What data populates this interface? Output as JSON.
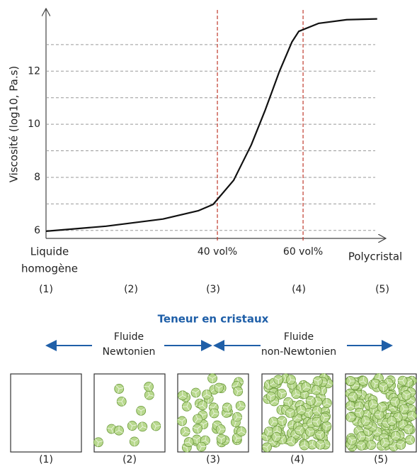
{
  "chart_data": {
    "type": "line",
    "y_label": "Viscosité (log10, Pa.s)",
    "x": [
      0,
      14,
      27.3,
      35.5,
      39,
      43.8,
      47.9,
      51.2,
      54.5,
      57.4,
      59,
      63.6,
      70.2,
      77.3
    ],
    "series": [
      {
        "color": "#111111",
        "values": [
          5.97,
          6.16,
          6.43,
          6.74,
          6.98,
          7.89,
          9.22,
          10.55,
          12.0,
          13.1,
          13.5,
          13.8,
          13.94,
          13.97
        ]
      }
    ],
    "xlim": [
      0,
      78
    ],
    "xticks": [
      {
        "value": 40,
        "label": "40 vol%"
      },
      {
        "value": 60,
        "label": "60 vol%"
      }
    ],
    "vline_color": "#c0392b",
    "ylim": [
      5.7,
      14.2
    ],
    "yticks": [
      6,
      8,
      10,
      12
    ],
    "grid_lines": [
      6,
      7,
      8,
      9,
      10,
      11,
      12,
      13
    ],
    "x_start_label": [
      "Liquide",
      "homogène"
    ],
    "x_end_label": "Polycristal"
  },
  "stages": [
    "(1)",
    "(2)",
    "(3)",
    "(4)",
    "(5)"
  ],
  "section_title": "Teneur en cristaux",
  "regimes": [
    {
      "lines": [
        "Fluide",
        "Newtonien"
      ]
    },
    {
      "lines": [
        "Fluide",
        "non-Newtonien"
      ]
    }
  ]
}
